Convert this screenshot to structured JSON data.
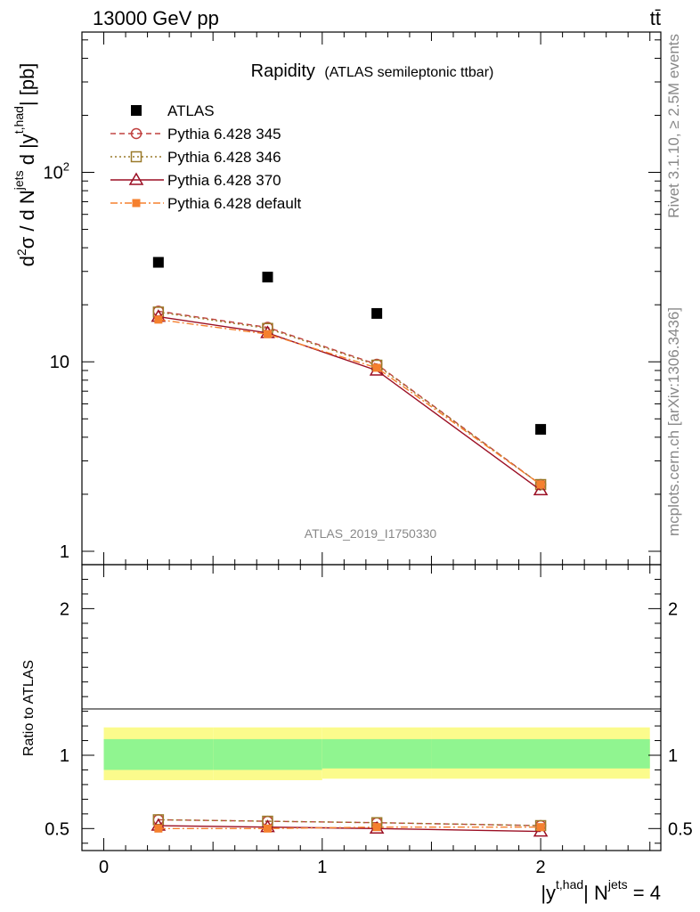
{
  "header": {
    "left": "13000 GeV pp",
    "right": "tt̄"
  },
  "side_texts": {
    "rivet": "Rivet 3.1.10, ≥ 2.5M events",
    "mcplots": "mcplots.cern.ch [arXiv:1306.3436]"
  },
  "watermark": "ATLAS_2019_I1750330",
  "chart_data": [
    {
      "type": "scatter",
      "panel": "main",
      "title": "Rapidity",
      "subtitle": "(ATLAS semileptonic ttbar)",
      "ylabel": "d²σ / d N^jets d |y^t,had| [pb]",
      "yscale": "log",
      "ylim": [
        0.85,
        550
      ],
      "xlim": [
        -0.1,
        2.55
      ],
      "ytick_labels": [
        "1",
        "10",
        "10²"
      ],
      "x": [
        0.25,
        0.75,
        1.25,
        2.0
      ],
      "series": [
        {
          "name": "ATLAS",
          "values": [
            33.5,
            28.0,
            18.0,
            4.4
          ],
          "color": "#000000",
          "marker": "filled-square"
        },
        {
          "name": "Pythia 6.428 345",
          "values": [
            18.5,
            15.2,
            9.7,
            2.25
          ],
          "color": "#c0403f",
          "marker": "open-circle",
          "dash": "dashed"
        },
        {
          "name": "Pythia 6.428 346",
          "values": [
            18.3,
            15.0,
            9.6,
            2.25
          ],
          "color": "#9a7a2a",
          "marker": "open-square",
          "dash": "dotted"
        },
        {
          "name": "Pythia 6.428 370",
          "values": [
            17.3,
            14.2,
            9.0,
            2.1
          ],
          "color": "#9b0f24",
          "marker": "open-triangle",
          "dash": "solid"
        },
        {
          "name": "Pythia 6.428 default",
          "values": [
            16.7,
            14.0,
            9.3,
            2.25
          ],
          "color": "#f5802e",
          "marker": "filled-square-small",
          "dash": "dashdot"
        }
      ],
      "legend": "top-left"
    },
    {
      "type": "scatter",
      "panel": "ratio",
      "ylabel": "Ratio to ATLAS",
      "xlabel": "|y^t,had| N^jets = 4",
      "ylim": [
        0.35,
        2.3
      ],
      "xlim": [
        -0.1,
        2.55
      ],
      "ytick_labels": [
        "0.5",
        "1",
        "2"
      ],
      "xtick_labels": [
        "0",
        "1",
        "2"
      ],
      "x": [
        0.25,
        0.75,
        1.25,
        2.0
      ],
      "bands": {
        "bins": [
          [
            0.0,
            0.5
          ],
          [
            0.5,
            1.0
          ],
          [
            1.0,
            1.5
          ],
          [
            1.5,
            2.5
          ]
        ],
        "yellow": [
          [
            0.83,
            1.19
          ],
          [
            0.83,
            1.19
          ],
          [
            0.84,
            1.19
          ],
          [
            0.84,
            1.19
          ]
        ],
        "green": [
          [
            0.9,
            1.11
          ],
          [
            0.9,
            1.11
          ],
          [
            0.91,
            1.11
          ],
          [
            0.91,
            1.11
          ]
        ]
      },
      "series": [
        {
          "name": "Pythia 6.428 345",
          "values": [
            0.56,
            0.55,
            0.54,
            0.52
          ]
        },
        {
          "name": "Pythia 6.428 346",
          "values": [
            0.56,
            0.55,
            0.54,
            0.52
          ]
        },
        {
          "name": "Pythia 6.428 370",
          "values": [
            0.52,
            0.51,
            0.5,
            0.48
          ]
        },
        {
          "name": "Pythia 6.428 default",
          "values": [
            0.5,
            0.5,
            0.51,
            0.51
          ]
        }
      ]
    }
  ]
}
